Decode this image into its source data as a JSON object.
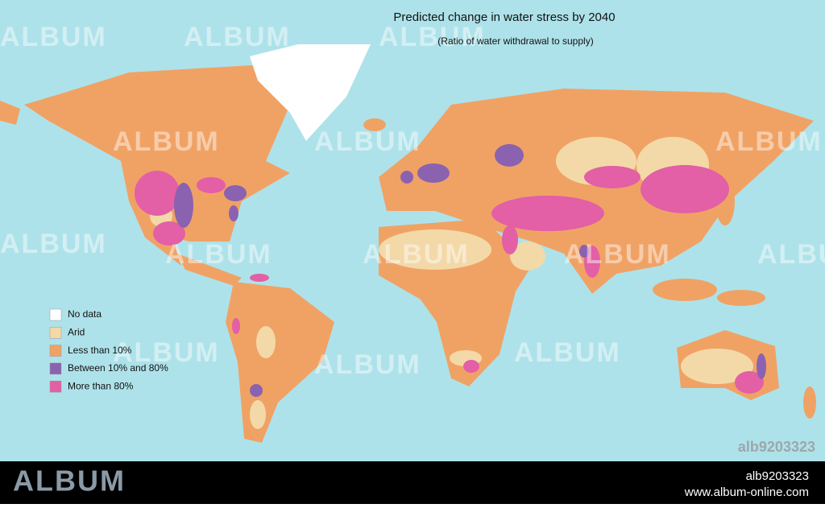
{
  "title": "Predicted change in water stress by 2040",
  "subtitle": "(Ratio of water withdrawal to supply)",
  "legend": [
    {
      "label": "No data",
      "color": "#ffffff"
    },
    {
      "label": "Arid",
      "color": "#f3d9a8"
    },
    {
      "label": "Less than 10%",
      "color": "#f0a265"
    },
    {
      "label": "Between 10% and 80%",
      "color": "#8a62b0"
    },
    {
      "label": "More than 80%",
      "color": "#e35fa6"
    }
  ],
  "watermark": "ALBUM",
  "image_id": "alb9203323",
  "footer": {
    "brand": "ALBUM",
    "id": "alb9203323",
    "url": "www.album-online.com"
  }
}
